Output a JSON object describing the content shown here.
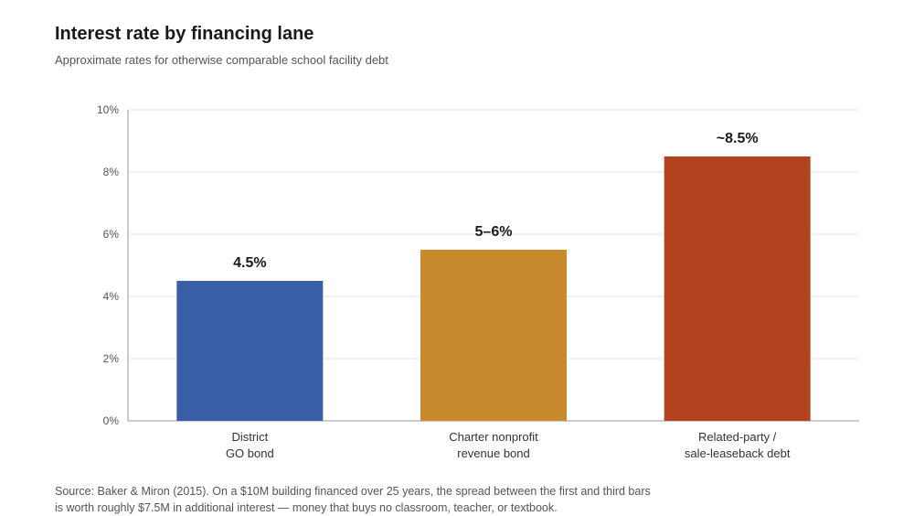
{
  "header": {
    "title": "Interest rate by financing lane",
    "subtitle": "Approximate rates for otherwise comparable school facility debt"
  },
  "chart_data": {
    "type": "bar",
    "title": "Interest rate by financing lane",
    "subtitle": "Approximate rates for otherwise comparable school facility debt",
    "xlabel": "",
    "ylabel": "",
    "ylim": [
      0,
      10
    ],
    "yticks": [
      "0%",
      "2%",
      "4%",
      "6%",
      "8%",
      "10%"
    ],
    "grid": true,
    "categories": [
      [
        "District",
        "GO bond"
      ],
      [
        "Charter nonprofit",
        "revenue bond"
      ],
      [
        "Related-party /",
        "sale-leaseback debt"
      ]
    ],
    "values": [
      4.5,
      5.5,
      8.5
    ],
    "data_labels": [
      "4.5%",
      "5–6%",
      "~8.5%"
    ],
    "colors": [
      "#3a5ea5",
      "#c98a2e",
      "#b3431f"
    ]
  },
  "footer": {
    "source_line1": "Source: Baker & Miron (2015). On a $10M building financed over 25 years, the spread between the first and third bars",
    "source_line2": "is worth roughly $7.5M in additional interest — money that buys no classroom, teacher, or textbook."
  }
}
